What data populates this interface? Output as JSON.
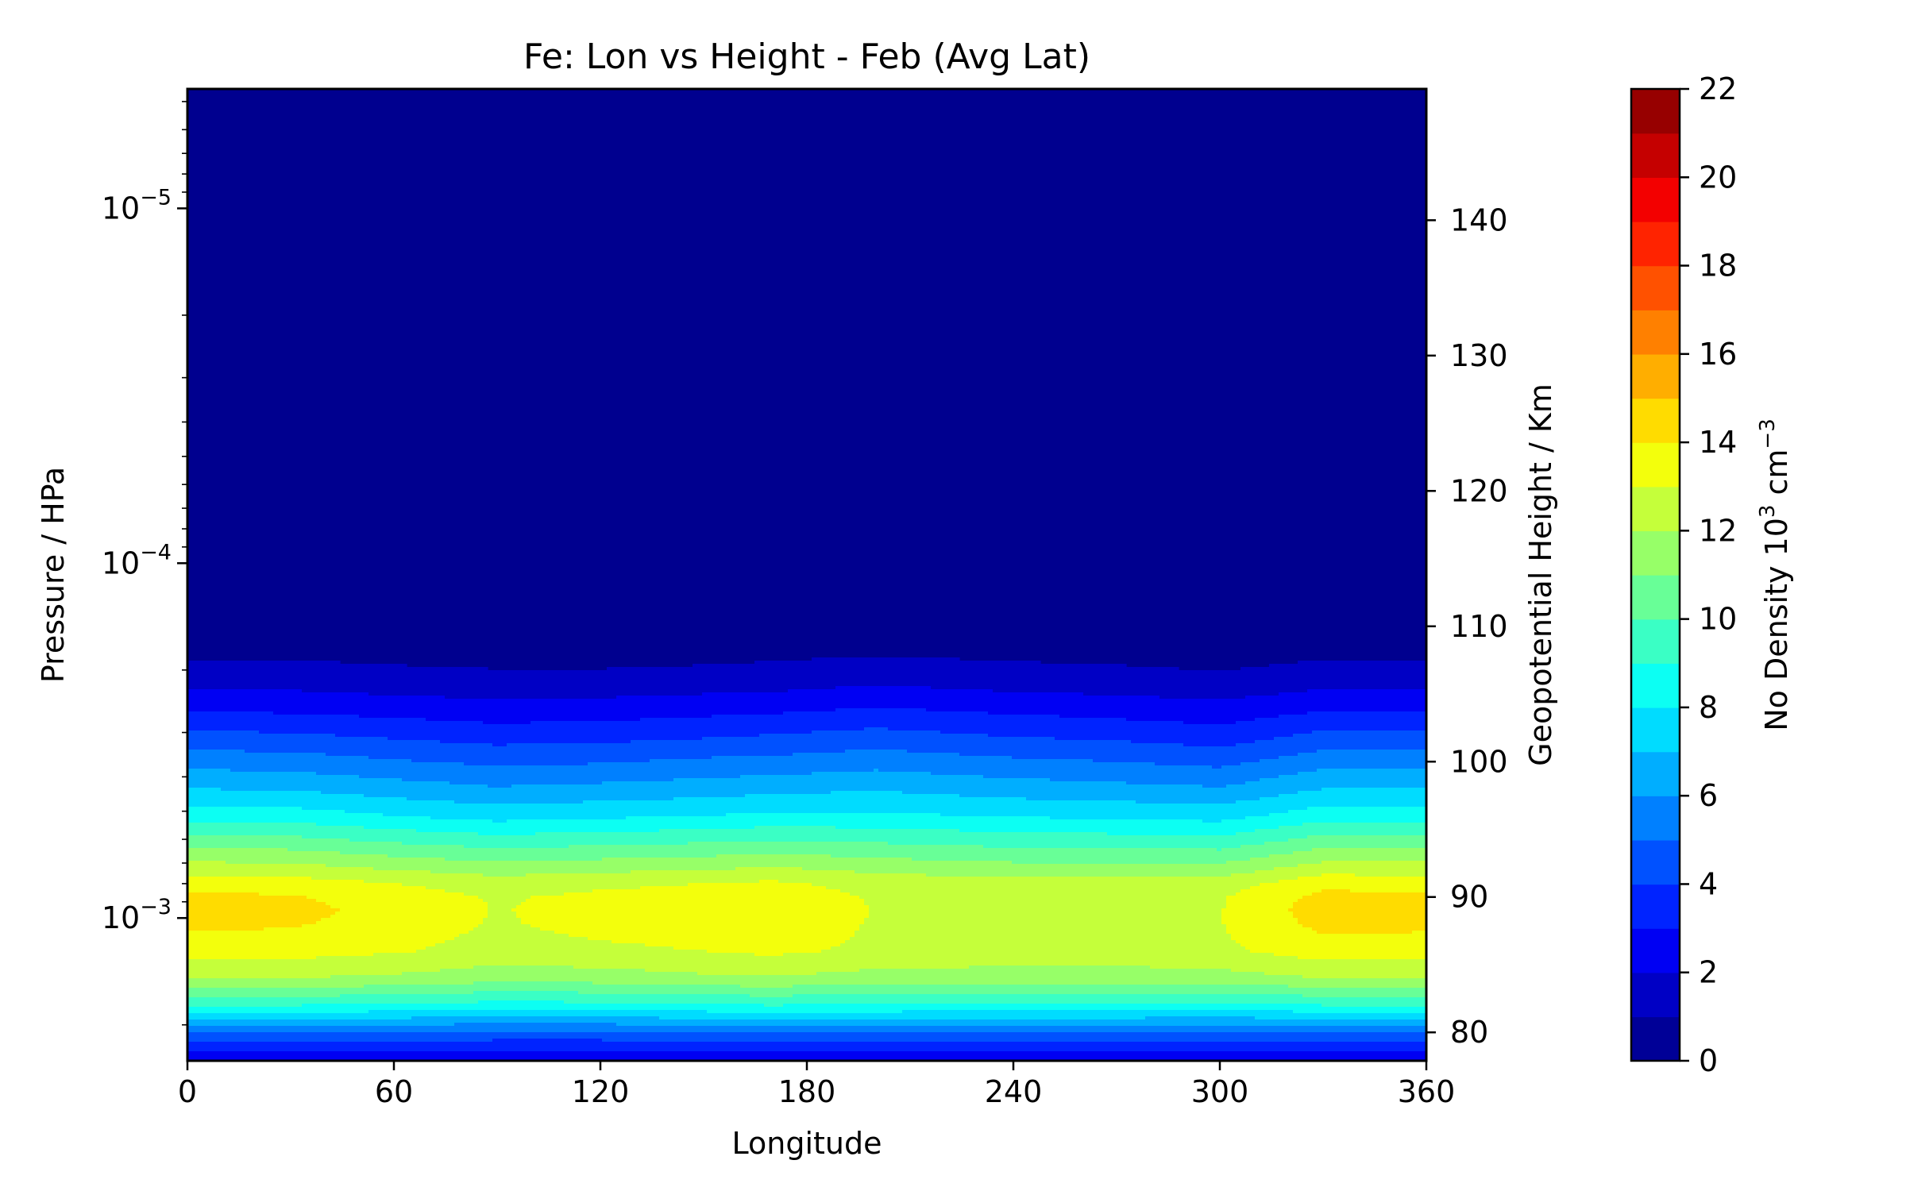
{
  "chart_data": {
    "type": "heatmap",
    "subtype": "filled-contour",
    "title": "Fe: Lon vs Height - Feb (Avg Lat)",
    "xlabel": "Longitude",
    "ylabel_left": "Pressure / HPa",
    "ylabel_right": "Geopotential Height / Km",
    "colorbar_label": "No Density 10",
    "colorbar_label_sup": "3",
    "colorbar_label_unit": "cm",
    "colorbar_label_unit_sup": "−3",
    "xlim": [
      0,
      360
    ],
    "x_ticks": [
      0,
      60,
      120,
      180,
      240,
      300,
      360
    ],
    "x_tick_labels": [
      "0",
      "60",
      "120",
      "180",
      "240",
      "300",
      "360"
    ],
    "y_left_scale": "log",
    "y_left_ticks": [
      {
        "value": 1e-05,
        "base": "10",
        "exp": "−5"
      },
      {
        "value": 0.0001,
        "base": "10",
        "exp": "−4"
      },
      {
        "value": 0.001,
        "base": "10",
        "exp": "−3"
      }
    ],
    "y_right_ticks": [
      80,
      90,
      100,
      110,
      120,
      130,
      140
    ],
    "y_right_tick_labels": [
      "80",
      "90",
      "100",
      "110",
      "120",
      "130",
      "140"
    ],
    "height_range_km": [
      77.9,
      149.7
    ],
    "colorbar": {
      "levels": [
        0,
        1,
        2,
        3,
        4,
        5,
        6,
        7,
        8,
        9,
        10,
        11,
        12,
        13,
        14,
        15,
        16,
        17,
        18,
        19,
        20,
        21,
        22
      ],
      "tick_values": [
        0,
        2,
        4,
        6,
        8,
        10,
        12,
        14,
        16,
        18,
        20,
        22
      ],
      "tick_labels": [
        "0",
        "2",
        "4",
        "6",
        "8",
        "10",
        "12",
        "14",
        "16",
        "18",
        "20",
        "22"
      ],
      "colormap": "jet"
    },
    "profile_heights_km": [
      78,
      80,
      82,
      84,
      86,
      88,
      89,
      90,
      91,
      92,
      94,
      96,
      98,
      100,
      102,
      104,
      106,
      108,
      110
    ],
    "profile_longitudes": [
      0,
      30,
      60,
      90,
      120,
      150,
      170,
      200,
      240,
      270,
      300,
      330,
      360
    ],
    "density_values": [
      [
        2.0,
        5.0,
        9.0,
        12.0,
        13.5,
        14.2,
        14.4,
        14.2,
        13.6,
        12.6,
        10.6,
        8.6,
        7.0,
        5.6,
        4.2,
        2.8,
        1.6,
        0.8,
        0.0
      ],
      [
        2.0,
        5.0,
        9.0,
        12.0,
        13.4,
        14.1,
        14.3,
        14.1,
        13.5,
        12.5,
        10.5,
        8.5,
        6.9,
        5.5,
        4.1,
        2.7,
        1.6,
        0.8,
        0.0
      ],
      [
        2.0,
        4.9,
        8.9,
        11.8,
        13.1,
        13.6,
        13.7,
        13.5,
        13.0,
        12.0,
        10.0,
        8.0,
        6.5,
        5.1,
        3.8,
        2.5,
        1.4,
        0.7,
        0.0
      ],
      [
        2.0,
        4.8,
        8.6,
        11.4,
        12.6,
        12.9,
        12.95,
        12.9,
        12.5,
        11.6,
        9.6,
        7.6,
        6.1,
        4.8,
        3.5,
        2.3,
        1.3,
        0.6,
        0.0
      ],
      [
        2.0,
        4.8,
        8.7,
        11.5,
        12.8,
        13.3,
        13.3,
        13.2,
        12.8,
        11.8,
        9.8,
        7.8,
        6.3,
        4.9,
        3.6,
        2.4,
        1.3,
        0.6,
        0.0
      ],
      [
        2.1,
        5.0,
        8.9,
        11.8,
        13.0,
        13.5,
        13.6,
        13.4,
        13.0,
        12.0,
        10.0,
        8.0,
        6.5,
        5.2,
        3.8,
        2.6,
        1.4,
        0.7,
        0.0
      ],
      [
        2.1,
        5.0,
        9.0,
        11.9,
        13.2,
        13.7,
        13.8,
        13.6,
        13.2,
        12.2,
        10.2,
        8.2,
        6.7,
        5.3,
        4.0,
        2.7,
        1.5,
        0.8,
        0.0
      ],
      [
        2.2,
        5.1,
        8.9,
        11.6,
        12.8,
        12.9,
        12.95,
        12.9,
        12.6,
        11.8,
        10.0,
        8.2,
        6.9,
        5.6,
        4.3,
        3.0,
        1.8,
        0.9,
        0.0
      ],
      [
        2.2,
        5.0,
        8.8,
        11.5,
        12.6,
        12.9,
        12.9,
        12.8,
        12.4,
        11.5,
        9.7,
        7.9,
        6.5,
        5.2,
        3.9,
        2.7,
        1.5,
        0.8,
        0.0
      ],
      [
        2.1,
        5.0,
        8.8,
        11.5,
        12.6,
        12.9,
        12.9,
        12.8,
        12.4,
        11.5,
        9.6,
        7.8,
        6.3,
        5.0,
        3.7,
        2.5,
        1.4,
        0.7,
        0.0
      ],
      [
        2.0,
        4.9,
        8.7,
        11.6,
        12.8,
        12.95,
        12.95,
        12.9,
        12.5,
        11.5,
        9.5,
        7.6,
        6.1,
        4.7,
        3.4,
        2.3,
        1.2,
        0.6,
        0.0
      ],
      [
        2.0,
        5.0,
        9.0,
        12.0,
        13.5,
        14.3,
        14.5,
        14.3,
        13.7,
        12.6,
        10.6,
        8.6,
        7.0,
        5.6,
        4.2,
        2.8,
        1.6,
        0.8,
        0.0
      ],
      [
        2.0,
        5.0,
        9.0,
        12.0,
        13.5,
        14.2,
        14.4,
        14.2,
        13.6,
        12.6,
        10.6,
        8.6,
        7.0,
        5.6,
        4.2,
        2.8,
        1.6,
        0.8,
        0.0
      ]
    ]
  }
}
